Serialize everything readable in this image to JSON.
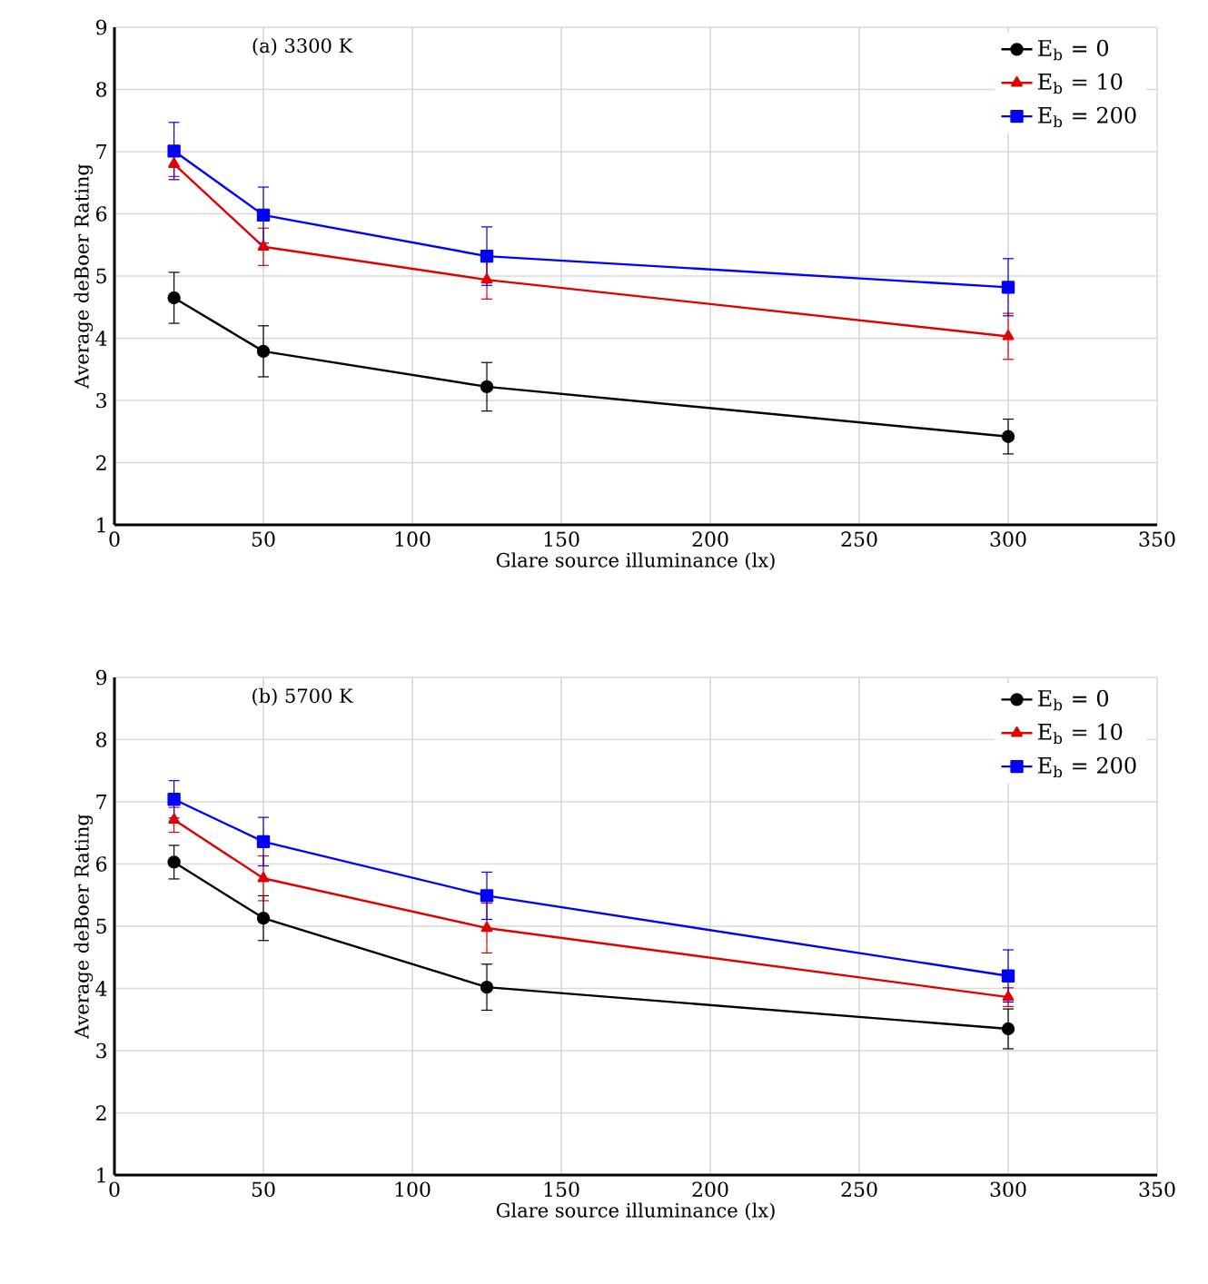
{
  "chart_data": [
    {
      "type": "line",
      "title": "(a) 3300 K",
      "xlabel": "Glare source illuminance (lx)",
      "ylabel": "Average deBoer Rating",
      "x": [
        20,
        50,
        125,
        300
      ],
      "xlim": [
        0,
        350
      ],
      "xticks": [
        0,
        50,
        100,
        150,
        200,
        250,
        300,
        350
      ],
      "ylim": [
        1,
        9
      ],
      "yticks": [
        1,
        2,
        3,
        4,
        5,
        6,
        7,
        8,
        9
      ],
      "grid": true,
      "legend": "top right",
      "line_style": "solid",
      "series": [
        {
          "name": "E$_{b}$ = 0",
          "color": "#000000",
          "marker": "circle",
          "values": [
            4.65,
            3.79,
            3.22,
            2.42
          ],
          "errors": [
            0.41,
            0.41,
            0.39,
            0.28
          ]
        },
        {
          "name": "E$_{b}$ = 10",
          "color": "#e00000",
          "marker": "triangle",
          "values": [
            6.8,
            5.47,
            4.94,
            4.03
          ],
          "errors": [
            0.2,
            0.3,
            0.31,
            0.37
          ]
        },
        {
          "name": "E$_{b}$ = 200",
          "color": "#0000ff",
          "marker": "square",
          "values": [
            7.01,
            5.98,
            5.32,
            4.82
          ],
          "errors": [
            0.46,
            0.45,
            0.47,
            0.46
          ]
        }
      ]
    },
    {
      "type": "line",
      "title": "(b) 5700 K",
      "xlabel": "Glare source illuminance (lx)",
      "ylabel": "Average deBoer Rating",
      "x": [
        20,
        50,
        125,
        300
      ],
      "xlim": [
        0,
        350
      ],
      "xticks": [
        0,
        50,
        100,
        150,
        200,
        250,
        300,
        350
      ],
      "ylim": [
        1,
        9
      ],
      "yticks": [
        1,
        2,
        3,
        4,
        5,
        6,
        7,
        8,
        9
      ],
      "grid": true,
      "legend": "top right",
      "line_style": "solid",
      "series": [
        {
          "name": "E$_{b}$ = 0",
          "color": "#000000",
          "marker": "circle",
          "values": [
            6.03,
            5.13,
            4.02,
            3.35
          ],
          "errors": [
            0.27,
            0.36,
            0.37,
            0.32
          ]
        },
        {
          "name": "E$_{b}$ = 10",
          "color": "#e00000",
          "marker": "triangle",
          "values": [
            6.71,
            5.77,
            4.97,
            3.86
          ],
          "errors": [
            0.2,
            0.36,
            0.4,
            0.15
          ]
        },
        {
          "name": "E$_{b}$ = 200",
          "color": "#0000ff",
          "marker": "square",
          "values": [
            7.04,
            6.36,
            5.49,
            4.2
          ],
          "errors": [
            0.3,
            0.39,
            0.38,
            0.42
          ]
        }
      ]
    }
  ]
}
